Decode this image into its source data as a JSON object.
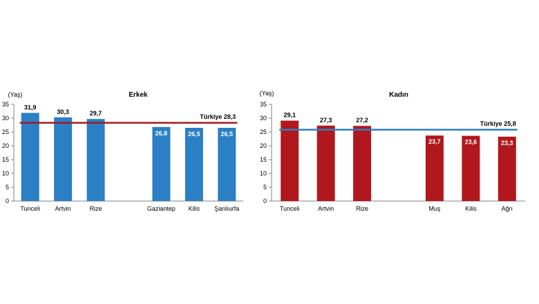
{
  "chart_data": [
    {
      "type": "bar",
      "title": "Erkek",
      "ylabel": "(Yaş)",
      "xlabel": "",
      "ylim": [
        0,
        35
      ],
      "yticks": [
        0,
        5,
        10,
        15,
        20,
        25,
        30,
        35
      ],
      "categories": [
        "Tunceli",
        "Artvin",
        "Rize",
        "",
        "Gaziantep",
        "Kilis",
        "Şanlıurfa"
      ],
      "values": [
        31.9,
        30.3,
        29.7,
        null,
        26.8,
        26.5,
        26.5
      ],
      "value_labels": [
        "31,9",
        "30,3",
        "29,7",
        "",
        "26,8",
        "26,5",
        "26,5"
      ],
      "bar_color": "#2b7fc4",
      "reference_line": {
        "label": "Türkiye  28,3",
        "value": 28.3,
        "color": "#a31b1f"
      }
    },
    {
      "type": "bar",
      "title": "Kadın",
      "ylabel": "(Yaş)",
      "xlabel": "",
      "ylim": [
        0,
        35
      ],
      "yticks": [
        0,
        5,
        10,
        15,
        20,
        25,
        30,
        35
      ],
      "categories": [
        "Tunceli",
        "Artvin",
        "Rize",
        "",
        "Muş",
        "Kilis",
        "Ağrı"
      ],
      "values": [
        29.1,
        27.3,
        27.2,
        null,
        23.7,
        23.6,
        23.3
      ],
      "value_labels": [
        "29,1",
        "27,3",
        "27,2",
        "",
        "23,7",
        "23,6",
        "23,3"
      ],
      "bar_color": "#b0181e",
      "reference_line": {
        "label": "Türkiye  25,8",
        "value": 25.8,
        "color": "#2b7fc4"
      }
    }
  ]
}
